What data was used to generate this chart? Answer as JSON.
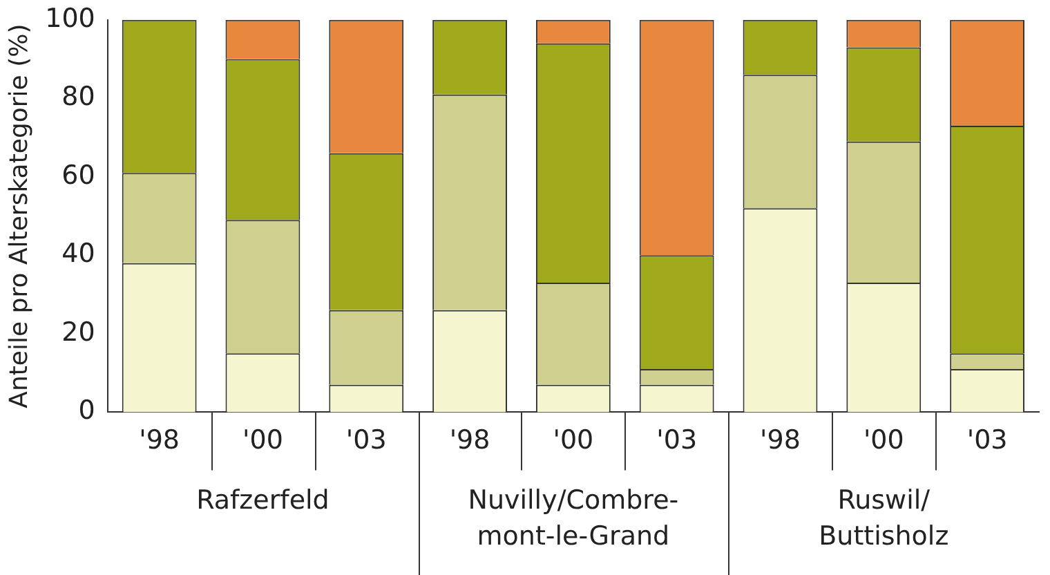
{
  "chart_data": {
    "type": "bar",
    "stacked": true,
    "ylabel": "Anteile pro Alterskategorie (%)",
    "categories": [
      "'98",
      "'00",
      "'03",
      "'98",
      "'00",
      "'03",
      "'98",
      "'00",
      "'03"
    ],
    "series": [
      {
        "color": "#f5f5d0",
        "values": [
          38,
          15,
          7,
          26,
          7,
          7,
          52,
          33,
          11
        ]
      },
      {
        "color": "#cfd08f",
        "values": [
          23,
          34,
          19,
          55,
          26,
          4,
          34,
          36,
          4
        ]
      },
      {
        "color": "#a0a81c",
        "values": [
          39,
          41,
          40,
          19,
          61,
          29,
          14,
          24,
          58
        ]
      },
      {
        "color": "#e8883f",
        "values": [
          0,
          10,
          34,
          0,
          6,
          60,
          0,
          7,
          27
        ]
      }
    ],
    "ylim": [
      0,
      100
    ],
    "yticks": [
      0,
      20,
      40,
      60,
      80,
      100
    ],
    "grid": false,
    "legend": false,
    "annotations": [
      "Rafzerfeld",
      "Nuvilly/Combre-\nmont-le-Grand",
      "Ruswil/\nButtisholz"
    ]
  }
}
